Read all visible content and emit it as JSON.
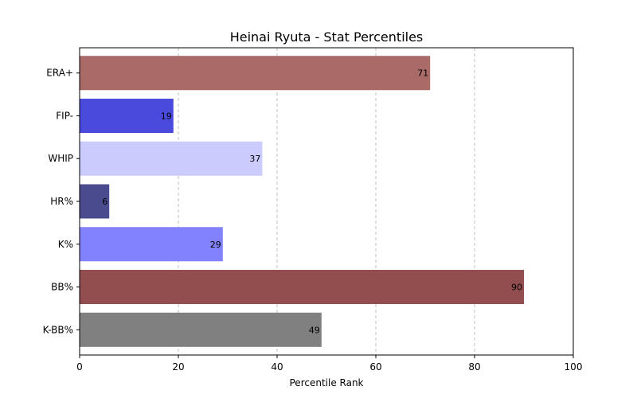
{
  "chart_data": {
    "type": "bar",
    "orientation": "horizontal",
    "title": "Heinai Ryuta - Stat Percentiles",
    "xlabel": "Percentile Rank",
    "ylabel": "",
    "xlim": [
      0,
      100
    ],
    "xticks": [
      0,
      20,
      40,
      60,
      80,
      100
    ],
    "grid": "x, dashed",
    "categories": [
      "ERA+",
      "FIP-",
      "WHIP",
      "HR%",
      "K%",
      "BB%",
      "K-BB%"
    ],
    "values": [
      71,
      19,
      37,
      6,
      29,
      90,
      49
    ],
    "colors": [
      "#aa6a67",
      "#4a4adc",
      "#cbcbfe",
      "#4a4a8f",
      "#8282fe",
      "#924e4f",
      "#808080"
    ]
  }
}
